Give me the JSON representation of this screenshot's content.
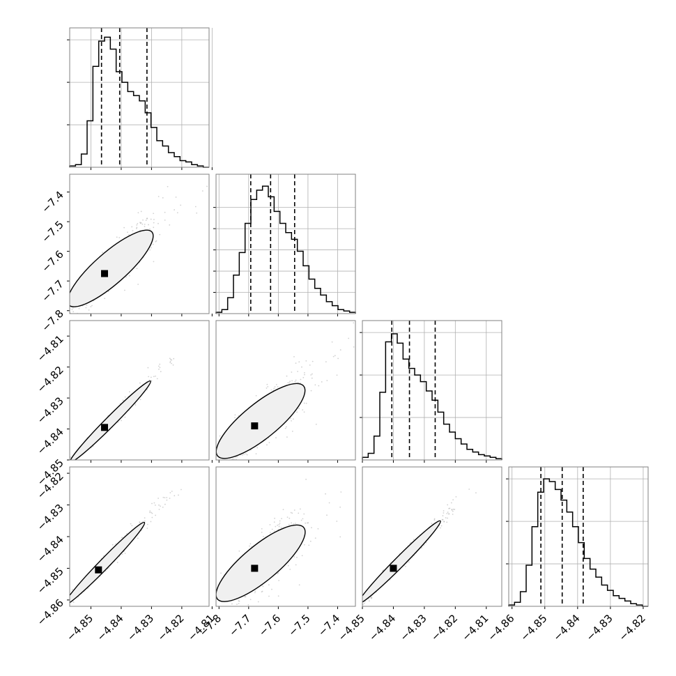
{
  "chart_data": {
    "type": "corner",
    "title": "",
    "parameters": [
      {
        "xlim": [
          -4.857,
          -4.811
        ],
        "xticks": [
          "−4.85",
          "−4.84",
          "−4.83",
          "−4.82",
          "−4.81"
        ],
        "xtick_values": [
          -4.85,
          -4.84,
          -4.83,
          -4.82,
          -4.81
        ],
        "quantiles": [
          -4.8465,
          -4.8405,
          -4.8315
        ],
        "hist_max": 1.0,
        "hist_grid": [
          0.32,
          0.64,
          0.96
        ],
        "histogram": [
          0.01,
          0.02,
          0.1,
          0.35,
          0.76,
          0.95,
          0.98,
          0.89,
          0.72,
          0.64,
          0.57,
          0.54,
          0.5,
          0.41,
          0.3,
          0.2,
          0.16,
          0.11,
          0.08,
          0.05,
          0.04,
          0.02,
          0.01,
          0.0
        ]
      },
      {
        "ylim": [
          -7.81,
          -7.34
        ],
        "xlim": [
          -7.81,
          -7.34
        ],
        "ticks": [
          "−7.8",
          "−7.7",
          "−7.6",
          "−7.5",
          "−7.4"
        ],
        "tick_values": [
          -7.8,
          -7.7,
          -7.6,
          -7.5,
          -7.4
        ],
        "quantiles": [
          -7.693,
          -7.626,
          -7.545
        ],
        "hist_max": 1.0,
        "hist_grid": [
          0.16,
          0.32,
          0.48,
          0.64,
          0.8
        ],
        "histogram": [
          0.01,
          0.03,
          0.12,
          0.29,
          0.46,
          0.68,
          0.86,
          0.93,
          0.96,
          0.88,
          0.77,
          0.68,
          0.61,
          0.56,
          0.47,
          0.36,
          0.26,
          0.19,
          0.14,
          0.09,
          0.06,
          0.03,
          0.02,
          0.01
        ]
      },
      {
        "ylim": [
          -4.85,
          -4.805
        ],
        "xlim": [
          -4.85,
          -4.805
        ],
        "ticks": [
          "−4.85",
          "−4.84",
          "−4.83",
          "−4.82",
          "−4.81"
        ],
        "tick_values": [
          -4.85,
          -4.84,
          -4.83,
          -4.82,
          -4.81
        ],
        "quantiles": [
          -4.8405,
          -4.8348,
          -4.8265
        ],
        "hist_max": 1.0,
        "hist_grid": [
          0.32,
          0.64,
          0.96
        ],
        "histogram": [
          0.02,
          0.05,
          0.18,
          0.51,
          0.89,
          0.95,
          0.88,
          0.76,
          0.69,
          0.64,
          0.59,
          0.52,
          0.45,
          0.36,
          0.27,
          0.21,
          0.16,
          0.12,
          0.08,
          0.06,
          0.04,
          0.03,
          0.02,
          0.01
        ]
      },
      {
        "ylim": [
          -4.862,
          -4.818
        ],
        "xlim": [
          -4.861,
          -4.8185
        ],
        "ticks": [
          "−4.86",
          "−4.85",
          "−4.84",
          "−4.83",
          "−4.82"
        ],
        "tick_values": [
          -4.86,
          -4.85,
          -4.84,
          -4.83,
          -4.82
        ],
        "quantiles": [
          -4.8512,
          -4.8447,
          -4.8383
        ],
        "hist_max": 1.0,
        "hist_grid": [
          0.32,
          0.64,
          0.96
        ],
        "histogram": [
          0.01,
          0.03,
          0.11,
          0.31,
          0.6,
          0.86,
          0.96,
          0.94,
          0.88,
          0.8,
          0.71,
          0.6,
          0.48,
          0.36,
          0.28,
          0.22,
          0.16,
          0.12,
          0.08,
          0.06,
          0.04,
          0.02,
          0.01,
          0.0
        ]
      }
    ],
    "pairs": [
      {
        "i": 1,
        "j": 0,
        "rho": 0.85,
        "sx": 0.0055,
        "sy": 0.058,
        "mode": [
          -4.8455,
          -7.675
        ]
      },
      {
        "i": 2,
        "j": 0,
        "rho": 0.985,
        "sx": 0.0055,
        "sy": 0.0055,
        "mode": [
          -4.8455,
          -4.8395
        ]
      },
      {
        "i": 2,
        "j": 1,
        "rho": 0.82,
        "sx": 0.058,
        "sy": 0.0055,
        "mode": [
          -7.68,
          -4.839
        ]
      },
      {
        "i": 3,
        "j": 0,
        "rho": 0.985,
        "sx": 0.0055,
        "sy": 0.0055,
        "mode": [
          -4.8475,
          -4.8505
        ]
      },
      {
        "i": 3,
        "j": 1,
        "rho": 0.82,
        "sx": 0.058,
        "sy": 0.0055,
        "mode": [
          -7.68,
          -4.85
        ]
      },
      {
        "i": 3,
        "j": 2,
        "rho": 0.985,
        "sx": 0.0055,
        "sy": 0.0055,
        "mode": [
          -4.84,
          -4.85
        ]
      }
    ],
    "contour_levels": [
      0.5,
      1.0,
      1.5,
      2.0
    ],
    "grid": true,
    "colors": {
      "line": "#000000",
      "grid": "#b0b0b0",
      "points": "#999999",
      "frame": "#808080"
    }
  }
}
